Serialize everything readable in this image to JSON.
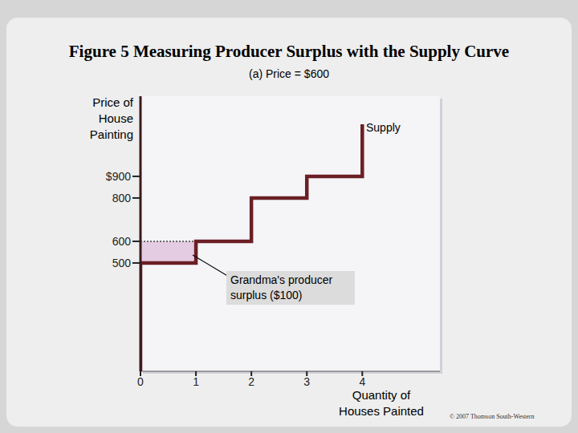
{
  "chart_data": {
    "type": "line",
    "title": "Figure 5 Measuring Producer Surplus with the Supply Curve",
    "subtitle": "(a) Price = $600",
    "x_label": "Quantity of Houses Painted",
    "y_label": "Price of House Painting",
    "x": [
      0,
      0,
      1,
      1,
      2,
      2,
      3,
      3,
      4,
      4
    ],
    "series": [
      {
        "name": "Supply",
        "color": "#6b1f24",
        "values": [
          0,
          500,
          500,
          600,
          600,
          800,
          800,
          900,
          900,
          1140
        ]
      }
    ],
    "xlim": [
      0,
      5.4
    ],
    "xticks": [
      0,
      1,
      2,
      3,
      4
    ],
    "ylim": [
      0,
      1270
    ],
    "yticks": [
      500,
      600,
      800,
      {
        "value": 900,
        "label": "$900"
      }
    ],
    "price": {
      "value": 600,
      "x": [
        0,
        1
      ],
      "line_style": "dotted"
    },
    "surplus": {
      "label": "Grandma's producer surplus ($100)",
      "x": [
        0,
        1
      ],
      "y": [
        500,
        600
      ],
      "color": "#e4cce2"
    },
    "credit": "© 2007 Thomson South-Western",
    "grid": false
  }
}
